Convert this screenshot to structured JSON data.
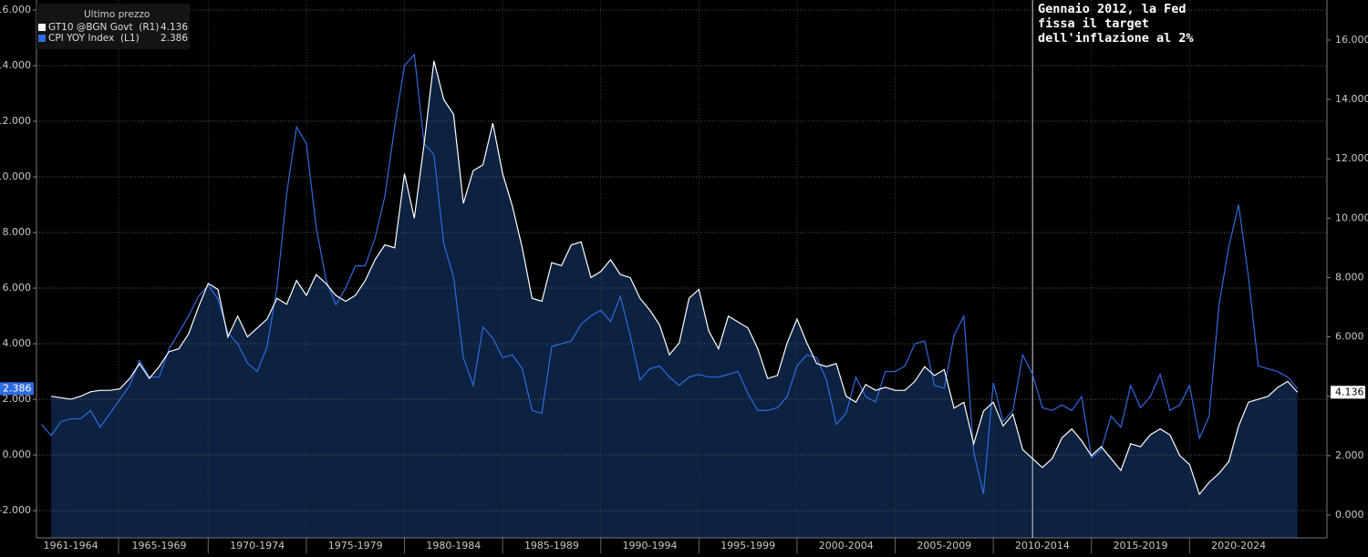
{
  "chart_data": {
    "type": "line",
    "legend_title": "Ultimo prezzo",
    "annotation": {
      "text": "Gennaio 2012, la Fed fissa il target dell'inflazione al 2%",
      "x": 2012
    },
    "x": [
      1961.5,
      1962,
      1962.5,
      1963,
      1963.5,
      1964,
      1964.5,
      1965,
      1965.5,
      1966,
      1966.5,
      1967,
      1967.5,
      1968,
      1968.5,
      1969,
      1969.5,
      1970,
      1970.5,
      1971,
      1971.5,
      1972,
      1972.5,
      1973,
      1973.5,
      1974,
      1974.5,
      1975,
      1975.5,
      1976,
      1976.5,
      1977,
      1977.5,
      1978,
      1978.5,
      1979,
      1979.5,
      1980,
      1980.5,
      1981,
      1981.5,
      1982,
      1982.5,
      1983,
      1983.5,
      1984,
      1984.5,
      1985,
      1985.5,
      1986,
      1986.5,
      1987,
      1987.5,
      1988,
      1988.5,
      1989,
      1989.5,
      1990,
      1990.5,
      1991,
      1991.5,
      1992,
      1992.5,
      1993,
      1993.5,
      1994,
      1994.5,
      1995,
      1995.5,
      1996,
      1996.5,
      1997,
      1997.5,
      1998,
      1998.5,
      1999,
      1999.5,
      2000,
      2000.5,
      2001,
      2001.5,
      2002,
      2002.5,
      2003,
      2003.5,
      2004,
      2004.5,
      2005,
      2005.5,
      2006,
      2006.5,
      2007,
      2007.5,
      2008,
      2008.5,
      2009,
      2009.5,
      2010,
      2010.5,
      2011,
      2011.5,
      2012,
      2012.5,
      2013,
      2013.5,
      2014,
      2014.5,
      2015,
      2015.5,
      2016,
      2016.5,
      2017,
      2017.5,
      2018,
      2018.5,
      2019,
      2019.5,
      2020,
      2020.5,
      2021,
      2021.5,
      2022,
      2022.5,
      2023,
      2023.5,
      2024,
      2024.5,
      2025,
      2025.5
    ],
    "series": [
      {
        "name": "GT10 @BGN Govt  (R1)",
        "color": "#ffffff",
        "axis": "y2",
        "area": true,
        "fill_color": "#0c2240",
        "values": [
          null,
          4.0,
          3.95,
          3.9,
          4.0,
          4.15,
          4.2,
          4.2,
          4.25,
          4.6,
          5.1,
          4.6,
          5.0,
          5.5,
          5.6,
          6.1,
          7.0,
          7.8,
          7.6,
          6.0,
          6.7,
          6.0,
          6.3,
          6.6,
          7.3,
          7.1,
          7.9,
          7.4,
          8.1,
          7.8,
          7.4,
          7.2,
          7.4,
          7.9,
          8.6,
          9.1,
          9.0,
          11.5,
          10.0,
          12.5,
          15.3,
          14.0,
          13.5,
          10.5,
          11.6,
          11.8,
          13.2,
          11.5,
          10.4,
          9.0,
          7.3,
          7.2,
          8.5,
          8.4,
          9.1,
          9.2,
          8.0,
          8.2,
          8.6,
          8.1,
          8.0,
          7.3,
          6.9,
          6.4,
          5.4,
          5.8,
          7.3,
          7.6,
          6.2,
          5.6,
          6.7,
          6.5,
          6.3,
          5.6,
          4.6,
          4.7,
          5.8,
          6.6,
          5.8,
          5.1,
          5.0,
          5.1,
          4.0,
          3.8,
          4.4,
          4.2,
          4.3,
          4.2,
          4.2,
          4.5,
          5.0,
          4.7,
          4.9,
          3.6,
          3.8,
          2.4,
          3.5,
          3.8,
          3.0,
          3.4,
          2.2,
          1.9,
          1.6,
          1.9,
          2.6,
          2.9,
          2.5,
          2.0,
          2.3,
          1.9,
          1.5,
          2.4,
          2.3,
          2.7,
          2.9,
          2.7,
          2.0,
          1.7,
          0.7,
          1.1,
          1.4,
          1.8,
          3.0,
          3.8,
          3.9,
          4.0,
          4.3,
          4.5,
          4.136
        ]
      },
      {
        "name": "CPI YOY Index  (L1)",
        "color": "#2e6be0",
        "axis": "y",
        "values": [
          1.1,
          0.7,
          1.2,
          1.3,
          1.3,
          1.6,
          1.0,
          1.5,
          2.0,
          2.5,
          3.4,
          2.8,
          2.8,
          3.8,
          4.4,
          5.0,
          5.7,
          6.1,
          5.6,
          4.4,
          4.0,
          3.3,
          3.0,
          3.9,
          6.0,
          9.4,
          11.8,
          11.2,
          8.2,
          6.3,
          5.4,
          6.0,
          6.8,
          6.8,
          7.8,
          9.3,
          11.8,
          14.0,
          14.4,
          11.2,
          10.8,
          7.6,
          6.4,
          3.5,
          2.5,
          4.6,
          4.2,
          3.5,
          3.6,
          3.1,
          1.6,
          1.5,
          3.9,
          4.0,
          4.1,
          4.7,
          5.0,
          5.2,
          4.8,
          5.7,
          4.3,
          2.7,
          3.1,
          3.2,
          2.8,
          2.5,
          2.8,
          2.9,
          2.8,
          2.8,
          2.9,
          3.0,
          2.2,
          1.6,
          1.6,
          1.7,
          2.1,
          3.2,
          3.6,
          3.5,
          2.7,
          1.1,
          1.5,
          2.8,
          2.1,
          1.9,
          3.0,
          3.0,
          3.2,
          4.0,
          4.1,
          2.5,
          2.4,
          4.3,
          5.0,
          0.1,
          -1.4,
          2.6,
          1.2,
          1.6,
          3.6,
          2.9,
          1.7,
          1.6,
          1.8,
          1.6,
          2.1,
          -0.1,
          0.2,
          1.4,
          1.0,
          2.5,
          1.7,
          2.1,
          2.9,
          1.6,
          1.8,
          2.5,
          0.6,
          1.4,
          5.4,
          7.5,
          9.0,
          6.4,
          3.2,
          3.1,
          3.0,
          2.8,
          2.386
        ]
      }
    ],
    "xlim": [
      1961.25,
      2027
    ],
    "xticks": [
      {
        "value": 1963,
        "label": "1961-1964"
      },
      {
        "value": 1967.5,
        "label": "1965-1969"
      },
      {
        "value": 1972.5,
        "label": "1970-1974"
      },
      {
        "value": 1977.5,
        "label": "1975-1979"
      },
      {
        "value": 1982.5,
        "label": "1980-1984"
      },
      {
        "value": 1987.5,
        "label": "1985-1989"
      },
      {
        "value": 1992.5,
        "label": "1990-1994"
      },
      {
        "value": 1997.5,
        "label": "1995-1999"
      },
      {
        "value": 2002.5,
        "label": "2000-2004"
      },
      {
        "value": 2007.5,
        "label": "2005-2009"
      },
      {
        "value": 2012.5,
        "label": "2010-2014"
      },
      {
        "value": 2017.5,
        "label": "2015-2019"
      },
      {
        "value": 2022.5,
        "label": "2020-2024"
      }
    ],
    "ylim": [
      -2.98,
      16.36
    ],
    "yticks": [
      {
        "value": -2,
        "label": "-2.000"
      },
      {
        "value": 0,
        "label": "0.000"
      },
      {
        "value": 2,
        "label": "2.000"
      },
      {
        "value": 4,
        "label": "4.000"
      },
      {
        "value": 6,
        "label": "6.000"
      },
      {
        "value": 8,
        "label": "8.000"
      },
      {
        "value": 10,
        "label": "10.000"
      },
      {
        "value": 12,
        "label": "12.000"
      },
      {
        "value": 14,
        "label": "14.000"
      },
      {
        "value": 16,
        "label": "16.000"
      }
    ],
    "y2lim": [
      -0.77,
      17.35
    ],
    "y2ticks": [
      {
        "value": 0,
        "label": "0.000"
      },
      {
        "value": 2,
        "label": "2.000"
      },
      {
        "value": 4,
        "label": "4.000"
      },
      {
        "value": 6,
        "label": "6.000"
      },
      {
        "value": 8,
        "label": "8.000"
      },
      {
        "value": 10,
        "label": "10.000"
      },
      {
        "value": 12,
        "label": "12.000"
      },
      {
        "value": 14,
        "label": "14.000"
      },
      {
        "value": 16,
        "label": "16.000"
      }
    ],
    "grid": true
  }
}
